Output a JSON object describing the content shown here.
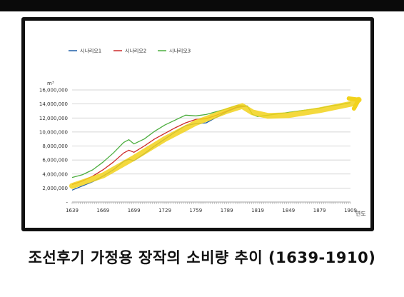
{
  "caption": "조선후기 가정용 장작의 소비량 추이 (1639-1910)",
  "chart_data": {
    "type": "line",
    "ylabel": "m³",
    "xlabel": "연도",
    "xlim": [
      1639,
      1910
    ],
    "ylim": [
      0,
      16000000
    ],
    "x_ticks": [
      "1639",
      "1669",
      "1699",
      "1729",
      "1759",
      "1789",
      "1819",
      "1849",
      "1879",
      "1909"
    ],
    "y_ticks": [
      "-",
      "2,000,000",
      "4,000,000",
      "6,000,000",
      "8,000,000",
      "10,000,000",
      "12,000,000",
      "14,000,000",
      "16,000,000"
    ],
    "grid": true,
    "legend_position": "top-center",
    "series": [
      {
        "name": "시나리오1",
        "color": "#1f5fa8",
        "x": [
          1639,
          1649,
          1659,
          1669,
          1679,
          1689,
          1694,
          1699,
          1709,
          1719,
          1729,
          1739,
          1749,
          1759,
          1769,
          1779,
          1789,
          1799,
          1809
        ],
        "y": [
          1700000,
          2300000,
          2900000,
          3700000,
          4600000,
          5800000,
          6100000,
          5900000,
          6900000,
          8000000,
          9000000,
          10000000,
          10900000,
          11200000,
          11300000,
          12100000,
          12900000,
          13500000,
          13700000
        ]
      },
      {
        "name": "시나리오2",
        "color": "#cc2a2a",
        "x": [
          1639,
          1649,
          1659,
          1669,
          1679,
          1689,
          1694,
          1699,
          1709,
          1719,
          1729,
          1739,
          1749,
          1759,
          1769,
          1779,
          1789,
          1799,
          1809
        ],
        "y": [
          2500000,
          3000000,
          3700000,
          4600000,
          5700000,
          7000000,
          7400000,
          7100000,
          8000000,
          9000000,
          9800000,
          10600000,
          11300000,
          11800000,
          11900000,
          12400000,
          13000000,
          13600000,
          13700000
        ]
      },
      {
        "name": "시나리오3",
        "color": "#4cae3f",
        "x": [
          1639,
          1649,
          1659,
          1669,
          1679,
          1689,
          1694,
          1699,
          1709,
          1719,
          1729,
          1739,
          1749,
          1759,
          1769,
          1779,
          1789,
          1799,
          1809,
          1814,
          1819,
          1829,
          1839,
          1849,
          1859,
          1869,
          1879,
          1889,
          1899,
          1909
        ],
        "y": [
          3500000,
          3900000,
          4600000,
          5700000,
          7000000,
          8500000,
          8900000,
          8300000,
          9000000,
          10100000,
          11000000,
          11700000,
          12400000,
          12300000,
          12500000,
          12900000,
          13300000,
          13800000,
          13700000,
          12500000,
          12200000,
          12400000,
          12600000,
          12800000,
          13000000,
          13200000,
          13400000,
          13700000,
          13900000,
          14200000
        ]
      }
    ],
    "annotation": {
      "type": "hand-drawn-arrow",
      "color": "#f2d21b",
      "x": [
        1639,
        1669,
        1699,
        1729,
        1759,
        1789,
        1804,
        1814,
        1829,
        1849,
        1879,
        1909,
        1917
      ],
      "y": [
        2300000,
        3800000,
        6300000,
        9000000,
        11300000,
        13000000,
        13700000,
        12800000,
        12300000,
        12400000,
        13100000,
        14000000,
        14600000
      ]
    }
  }
}
